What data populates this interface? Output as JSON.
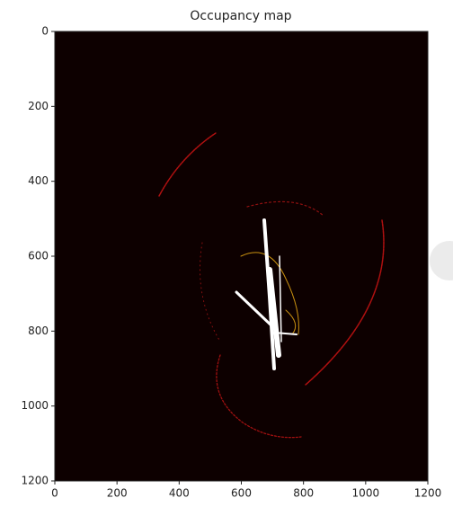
{
  "chart_data": {
    "type": "image",
    "title": "Occupancy map",
    "xlim": [
      0,
      1200
    ],
    "xticks": [
      0,
      200,
      400,
      600,
      800,
      1000,
      1200
    ],
    "ylim": [
      1200,
      0
    ],
    "yticks": [
      0,
      200,
      400,
      600,
      800,
      1000,
      1200
    ],
    "y_inverted": true,
    "background": "#0d0000"
  }
}
